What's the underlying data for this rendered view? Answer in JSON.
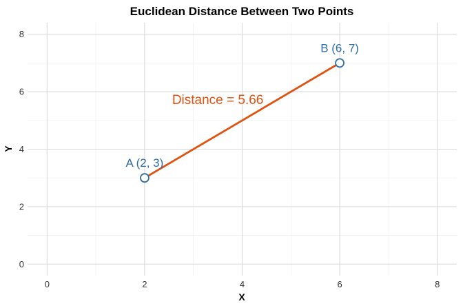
{
  "chart_data": {
    "type": "scatter",
    "title": "Euclidean Distance Between Two Points",
    "xlabel": "X",
    "ylabel": "Y",
    "xlim": [
      -0.4,
      8.4
    ],
    "ylim": [
      -0.4,
      8.4
    ],
    "x_ticks": [
      0,
      2,
      4,
      6,
      8
    ],
    "y_ticks": [
      0,
      2,
      4,
      6,
      8
    ],
    "x_tick_labels": [
      "0",
      "2",
      "4",
      "6",
      "8"
    ],
    "y_tick_labels": [
      "0",
      "2",
      "4",
      "6",
      "8"
    ],
    "grid": true,
    "points": [
      {
        "label": "A (2, 3)",
        "x": 2,
        "y": 3
      },
      {
        "label": "B (6, 7)",
        "x": 6,
        "y": 7
      }
    ],
    "segment": {
      "from": [
        2,
        3
      ],
      "to": [
        6,
        7
      ]
    },
    "annotation": {
      "text": "Distance = 5.66",
      "x": 3.5,
      "y": 5.5
    },
    "colors": {
      "points": "#2e6da4",
      "line": "#e0520f"
    }
  }
}
